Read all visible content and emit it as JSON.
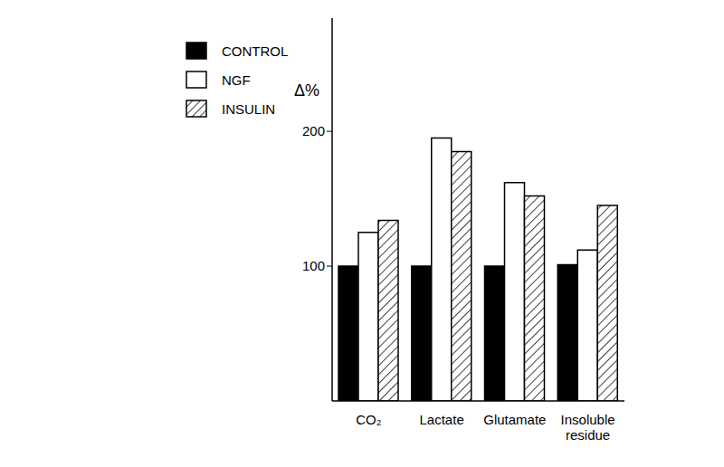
{
  "chart_data": {
    "type": "bar",
    "y_label": "Δ%",
    "categories": [
      "CO₂",
      "Lactate",
      "Glutamate",
      "Insoluble residue"
    ],
    "series": [
      {
        "name": "CONTROL",
        "color": "#000000",
        "values": [
          100,
          100,
          100,
          101
        ]
      },
      {
        "name": "NGF",
        "color": "#ffffff",
        "values": [
          125,
          195,
          162,
          112
        ]
      },
      {
        "name": "INSULIN",
        "color": "#ffffff",
        "values": [
          134,
          185,
          152,
          145
        ]
      }
    ],
    "ylim": [
      0,
      284
    ],
    "yticks": [
      100,
      200
    ],
    "grid": false,
    "legend": "upper left"
  }
}
